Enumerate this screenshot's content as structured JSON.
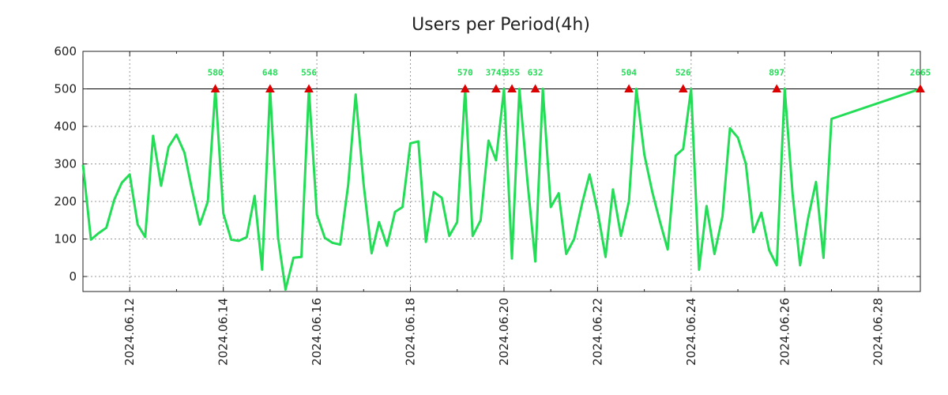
{
  "chart_data": {
    "type": "line",
    "title": "Users per Period(4h)",
    "xlabel": "",
    "ylabel": "",
    "ylim": [
      -40,
      600
    ],
    "xlim_days": [
      0,
      17.9
    ],
    "date_origin": "2024.06.11",
    "yticks": [
      0,
      100,
      200,
      300,
      400,
      500,
      600
    ],
    "ytick_labels": [
      "0",
      "100",
      "200",
      "300",
      "400",
      "500",
      "600"
    ],
    "xticks_days": [
      1,
      3,
      5,
      7,
      9,
      11,
      13,
      15,
      17
    ],
    "xtick_labels": [
      "2024.06.12",
      "2024.06.14",
      "2024.06.16",
      "2024.06.18",
      "2024.06.20",
      "2024.06.22",
      "2024.06.24",
      "2024.06.26",
      "2024.06.28"
    ],
    "threshold": 500,
    "colors": {
      "line": "#22dd55",
      "peak_marker": "#dd0000",
      "threshold": "#000000",
      "grid": "#999999"
    },
    "series": [
      {
        "name": "users",
        "x_days": [
          0.0,
          0.17,
          0.33,
          0.5,
          0.67,
          0.83,
          1.0,
          1.17,
          1.33,
          1.5,
          1.67,
          1.83,
          2.0,
          2.17,
          2.33,
          2.5,
          2.67,
          2.83,
          3.0,
          3.17,
          3.33,
          3.5,
          3.67,
          3.83,
          4.0,
          4.17,
          4.33,
          4.5,
          4.67,
          4.83,
          5.0,
          5.17,
          5.33,
          5.5,
          5.67,
          5.83,
          6.0,
          6.17,
          6.33,
          6.5,
          6.67,
          6.83,
          7.0,
          7.17,
          7.33,
          7.5,
          7.67,
          7.83,
          8.0,
          8.17,
          8.33,
          8.5,
          8.67,
          8.83,
          9.0,
          9.17,
          9.33,
          9.5,
          9.67,
          9.83,
          10.0,
          10.17,
          10.33,
          10.5,
          10.67,
          10.83,
          11.0,
          11.17,
          11.33,
          11.5,
          11.67,
          11.83,
          12.0,
          12.17,
          12.33,
          12.5,
          12.67,
          12.83,
          13.0,
          13.17,
          13.33,
          13.5,
          13.67,
          13.83,
          14.0,
          14.17,
          14.33,
          14.5,
          14.67,
          14.83,
          15.0,
          15.17,
          15.33,
          15.5,
          15.67,
          15.83,
          16.0,
          17.9
        ],
        "values": [
          298,
          98,
          115,
          130,
          205,
          250,
          272,
          138,
          105,
          375,
          242,
          345,
          378,
          330,
          232,
          138,
          200,
          500,
          168,
          98,
          95,
          105,
          215,
          18,
          500,
          105,
          -35,
          50,
          52,
          500,
          165,
          103,
          90,
          85,
          245,
          485,
          245,
          62,
          145,
          82,
          172,
          185,
          355,
          360,
          92,
          225,
          210,
          108,
          145,
          500,
          108,
          150,
          362,
          310,
          500,
          48,
          500,
          255,
          40,
          500,
          185,
          222,
          60,
          100,
          195,
          272,
          175,
          52,
          232,
          108,
          200,
          500,
          325,
          225,
          148,
          72,
          322,
          340,
          500,
          18,
          188,
          60,
          160,
          395,
          370,
          300,
          118,
          170,
          70,
          30,
          500,
          220,
          30,
          155,
          252,
          50,
          420,
          500
        ]
      }
    ],
    "peak_labels": [
      {
        "x_day": 2.83,
        "label": "580"
      },
      {
        "x_day": 4.0,
        "label": "648"
      },
      {
        "x_day": 4.83,
        "label": "556"
      },
      {
        "x_day": 8.17,
        "label": "570"
      },
      {
        "x_day": 8.83,
        "label": "3745"
      },
      {
        "x_day": 9.17,
        "label": "355"
      },
      {
        "x_day": 9.67,
        "label": "632"
      },
      {
        "x_day": 11.67,
        "label": "504"
      },
      {
        "x_day": 12.83,
        "label": "526"
      },
      {
        "x_day": 14.83,
        "label": "897"
      },
      {
        "x_day": 17.9,
        "label": "2665"
      }
    ]
  }
}
